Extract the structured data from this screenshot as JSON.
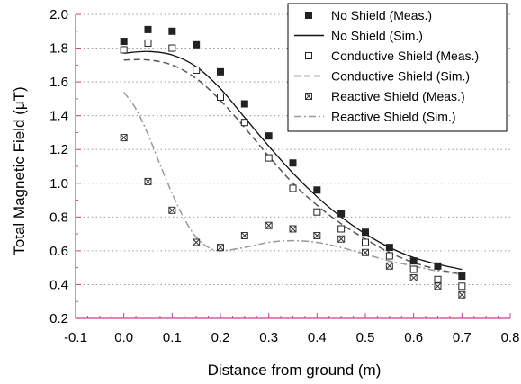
{
  "chart_data": {
    "type": "scatter",
    "xlabel": "Distance from ground (m)",
    "ylabel": "Total Magnetic Field (μT)",
    "xlim": [
      -0.1,
      0.8
    ],
    "ylim": [
      0.2,
      2.0
    ],
    "xticks": [
      "-0.1",
      "0.0",
      "0.1",
      "0.2",
      "0.3",
      "0.4",
      "0.5",
      "0.6",
      "0.7",
      "0.8"
    ],
    "yticks": [
      "0.2",
      "0.4",
      "0.6",
      "0.8",
      "1.0",
      "1.2",
      "1.4",
      "1.6",
      "1.8",
      "2.0"
    ],
    "grid": "horizontal dotted",
    "legend_position": "top-right",
    "series": [
      {
        "name": "No Shield (Meas.)",
        "kind": "markers",
        "marker": "filled-square",
        "color": "#222222",
        "x": [
          0.0,
          0.05,
          0.1,
          0.15,
          0.2,
          0.25,
          0.3,
          0.35,
          0.4,
          0.45,
          0.5,
          0.55,
          0.6,
          0.65,
          0.7
        ],
        "y": [
          1.84,
          1.91,
          1.9,
          1.82,
          1.66,
          1.47,
          1.28,
          1.12,
          0.96,
          0.82,
          0.71,
          0.62,
          0.54,
          0.51,
          0.45
        ]
      },
      {
        "name": "No Shield (Sim.)",
        "kind": "line",
        "dash": "solid",
        "color": "#111111",
        "x": [
          0.0,
          0.05,
          0.1,
          0.15,
          0.2,
          0.25,
          0.3,
          0.35,
          0.4,
          0.45,
          0.5,
          0.55,
          0.6,
          0.65,
          0.7
        ],
        "y": [
          1.77,
          1.78,
          1.76,
          1.69,
          1.56,
          1.39,
          1.22,
          1.06,
          0.92,
          0.8,
          0.7,
          0.62,
          0.56,
          0.52,
          0.49
        ]
      },
      {
        "name": "Conductive Shield (Meas.)",
        "kind": "markers",
        "marker": "open-square",
        "color": "#222222",
        "x": [
          0.0,
          0.05,
          0.1,
          0.15,
          0.2,
          0.25,
          0.3,
          0.35,
          0.4,
          0.45,
          0.5,
          0.55,
          0.6,
          0.65,
          0.7
        ],
        "y": [
          1.79,
          1.83,
          1.8,
          1.67,
          1.51,
          1.36,
          1.15,
          0.97,
          0.83,
          0.73,
          0.65,
          0.57,
          0.49,
          0.43,
          0.39
        ]
      },
      {
        "name": "Conductive Shield (Sim.)",
        "kind": "line",
        "dash": "dashed",
        "color": "#555555",
        "x": [
          0.0,
          0.05,
          0.1,
          0.15,
          0.2,
          0.25,
          0.3,
          0.35,
          0.4,
          0.45,
          0.5,
          0.55,
          0.6,
          0.65,
          0.7
        ],
        "y": [
          1.73,
          1.73,
          1.7,
          1.62,
          1.49,
          1.33,
          1.16,
          1.0,
          0.87,
          0.76,
          0.67,
          0.59,
          0.53,
          0.49,
          0.46
        ]
      },
      {
        "name": "Reactive Shield (Meas.)",
        "kind": "markers",
        "marker": "crossed-square",
        "color": "#333333",
        "x": [
          0.0,
          0.05,
          0.1,
          0.15,
          0.2,
          0.25,
          0.3,
          0.35,
          0.4,
          0.45,
          0.5,
          0.55,
          0.6,
          0.65,
          0.7
        ],
        "y": [
          1.27,
          1.01,
          0.84,
          0.65,
          0.62,
          0.69,
          0.75,
          0.73,
          0.69,
          0.67,
          0.59,
          0.51,
          0.44,
          0.39,
          0.34
        ]
      },
      {
        "name": "Reactive Shield (Sim.)",
        "kind": "line",
        "dash": "dash-dot",
        "color": "#999999",
        "x": [
          0.0,
          0.025,
          0.05,
          0.075,
          0.1,
          0.125,
          0.15,
          0.175,
          0.2,
          0.25,
          0.3,
          0.35,
          0.4,
          0.45,
          0.5,
          0.55,
          0.6,
          0.65,
          0.7
        ],
        "y": [
          1.54,
          1.44,
          1.29,
          1.11,
          0.94,
          0.79,
          0.68,
          0.62,
          0.6,
          0.62,
          0.65,
          0.66,
          0.65,
          0.62,
          0.58,
          0.54,
          0.51,
          0.48,
          0.46
        ]
      }
    ]
  }
}
